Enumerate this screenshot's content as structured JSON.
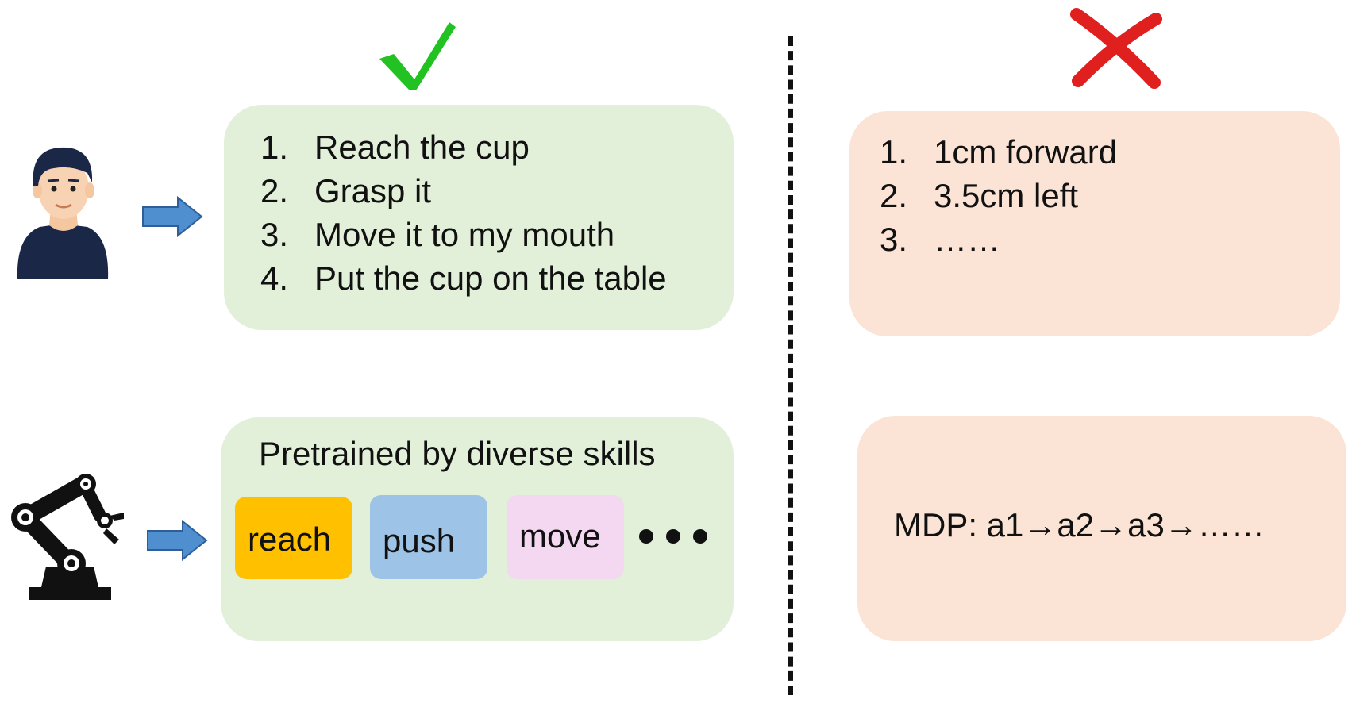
{
  "colors": {
    "good_panel": "#e2efd9",
    "bad_panel": "#fbe4d5",
    "check": "#22c222",
    "cross": "#e0201e",
    "arrow": "#4f8fd0",
    "chip_reach": "#ffc000",
    "chip_push": "#9dc3e6",
    "chip_move": "#f4d7f1"
  },
  "icons": {
    "good_marker": "check-mark-icon",
    "bad_marker": "cross-mark-icon",
    "human": "person-avatar-icon",
    "robot": "robot-arm-icon",
    "arrow": "right-arrow-icon"
  },
  "good_instructions": [
    {
      "num": "1.",
      "text": "Reach the cup"
    },
    {
      "num": "2.",
      "text": "Grasp it"
    },
    {
      "num": "3.",
      "text": "Move it to my mouth"
    },
    {
      "num": "4.",
      "text": "Put the cup on the table"
    }
  ],
  "skills": {
    "title": "Pretrained by diverse skills",
    "chips": [
      "reach",
      "push",
      "move"
    ]
  },
  "bad_instructions": [
    {
      "num": "1.",
      "text": "1cm forward"
    },
    {
      "num": "2.",
      "text": "3.5cm left"
    },
    {
      "num": "3.",
      "text": "……"
    }
  ],
  "mdp": "MDP: a1→a2→a3→……"
}
